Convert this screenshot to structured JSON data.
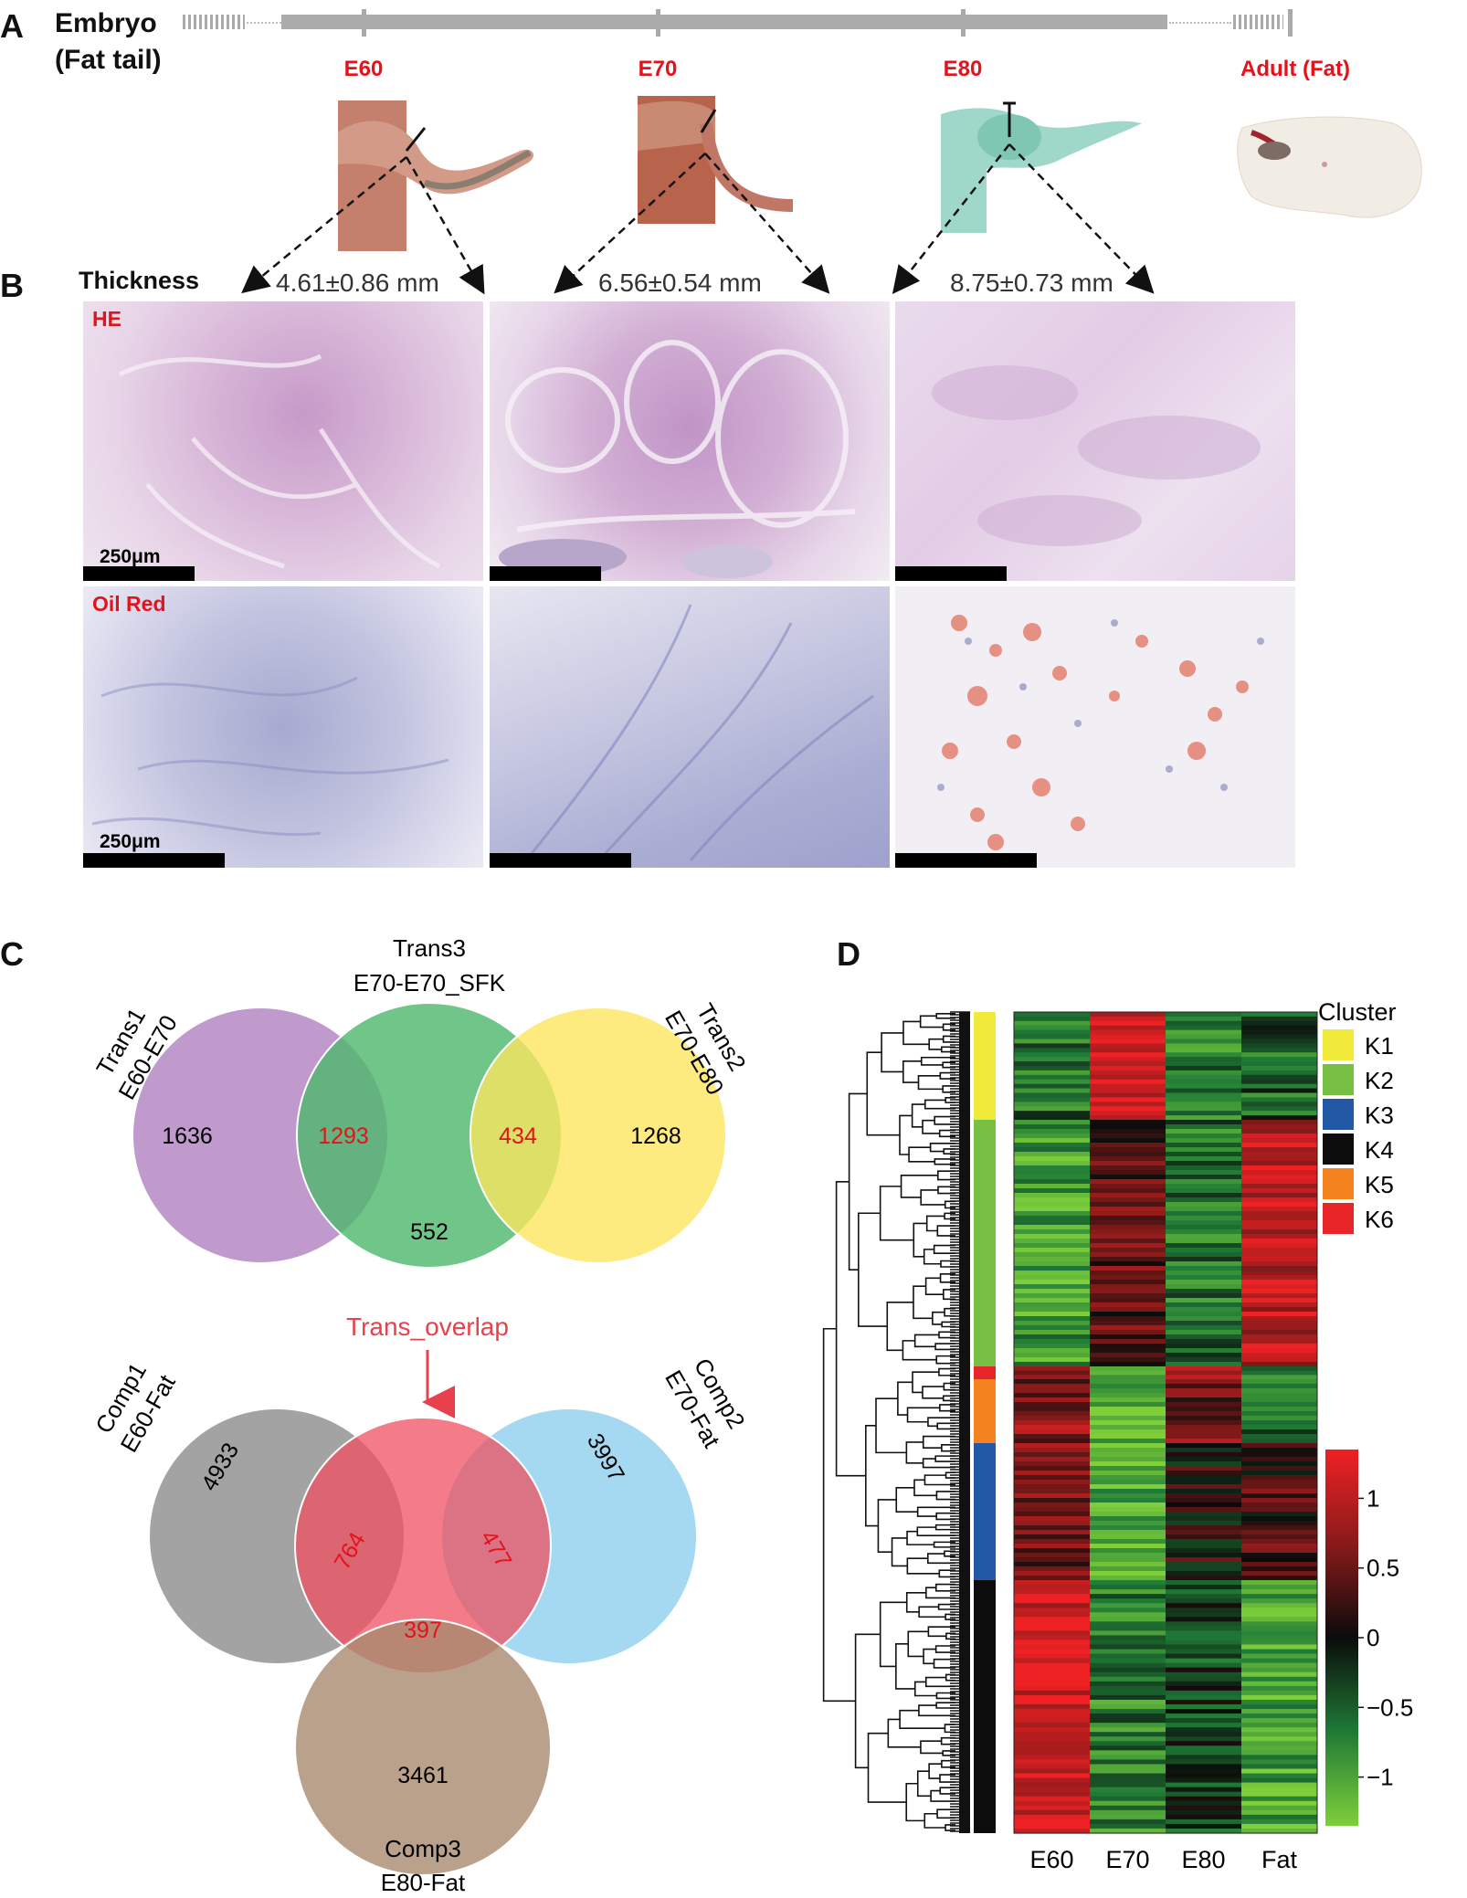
{
  "panelA": {
    "letter": "A",
    "title_line1": "Embryo",
    "title_line2": "(Fat tail)",
    "stages": [
      "E60",
      "E70",
      "E80",
      "Adult (Fat)"
    ]
  },
  "panelB": {
    "letter": "B",
    "thickness_label": "Thickness",
    "thickness_values": [
      "4.61±0.86 mm",
      "6.56±0.54 mm",
      "8.75±0.73 mm"
    ],
    "row_labels": [
      "HE",
      "Oil Red"
    ],
    "scale_label": "250μm"
  },
  "panelC": {
    "letter": "C",
    "top_venn": {
      "sets": [
        {
          "name_line1": "Trans1",
          "name_line2": "E60-E70",
          "color": "#b07fc0"
        },
        {
          "name_line1": "Trans3",
          "name_line2": "E70-E70_SFK",
          "color": "#4cb86b"
        },
        {
          "name_line1": "Trans2",
          "name_line2": "E70-E80",
          "color": "#fde65c"
        }
      ],
      "counts": {
        "trans1_only": "1636",
        "trans1_trans3": "1293",
        "trans3_only": "552",
        "trans3_trans2": "434",
        "trans2_only": "1268"
      }
    },
    "bottom_venn": {
      "overlap_label": "Trans_overlap",
      "sets": [
        {
          "name_line1": "Comp1",
          "name_line2": "E60-Fat",
          "color": "#8c8c8c"
        },
        {
          "name_line1": "Comp2",
          "name_line2": "E70-Fat",
          "color": "#8ecfee"
        },
        {
          "name_line1": "Comp3",
          "name_line2": "E80-Fat",
          "color": "#b89d84"
        }
      ],
      "counts": {
        "comp1_only": "4933",
        "comp1_overlap": "764",
        "comp2_only": "3997",
        "comp2_overlap": "477",
        "comp3_overlap": "397",
        "comp3_only": "3461"
      }
    }
  },
  "panelD": {
    "letter": "D",
    "columns": [
      "E60",
      "E70",
      "E80",
      "Fat"
    ],
    "legend_title": "Cluster",
    "clusters": [
      {
        "name": "K1",
        "color": "#f2ea3a"
      },
      {
        "name": "K2",
        "color": "#78c043"
      },
      {
        "name": "K3",
        "color": "#2358a6"
      },
      {
        "name": "K4",
        "color": "#0c0c0c"
      },
      {
        "name": "K5",
        "color": "#f3821f"
      },
      {
        "name": "K6",
        "color": "#e8262a"
      }
    ],
    "colorbar_ticks": [
      "1",
      "0.5",
      "0",
      "−0.5",
      "−1"
    ],
    "colorbar_values": [
      1,
      0.5,
      0,
      -0.5,
      -1
    ],
    "colorbar_range": [
      -1.35,
      1.35
    ],
    "heatmap_blocks": [
      {
        "cluster": "K1",
        "values": [
          -0.6,
          1.2,
          -0.7,
          -0.5
        ]
      },
      {
        "cluster": "K2",
        "values": [
          -0.9,
          0.4,
          -0.6,
          1.0
        ]
      },
      {
        "cluster": "K6",
        "values": [
          0.8,
          -0.9,
          1.0,
          -0.6
        ]
      },
      {
        "cluster": "K5",
        "values": [
          0.7,
          -1.2,
          0.6,
          -0.5
        ]
      },
      {
        "cluster": "K3",
        "values": [
          0.6,
          -1.1,
          0.1,
          0.3
        ]
      },
      {
        "cluster": "K4",
        "values": [
          1.2,
          -0.7,
          -0.3,
          -1.0
        ]
      }
    ]
  }
}
